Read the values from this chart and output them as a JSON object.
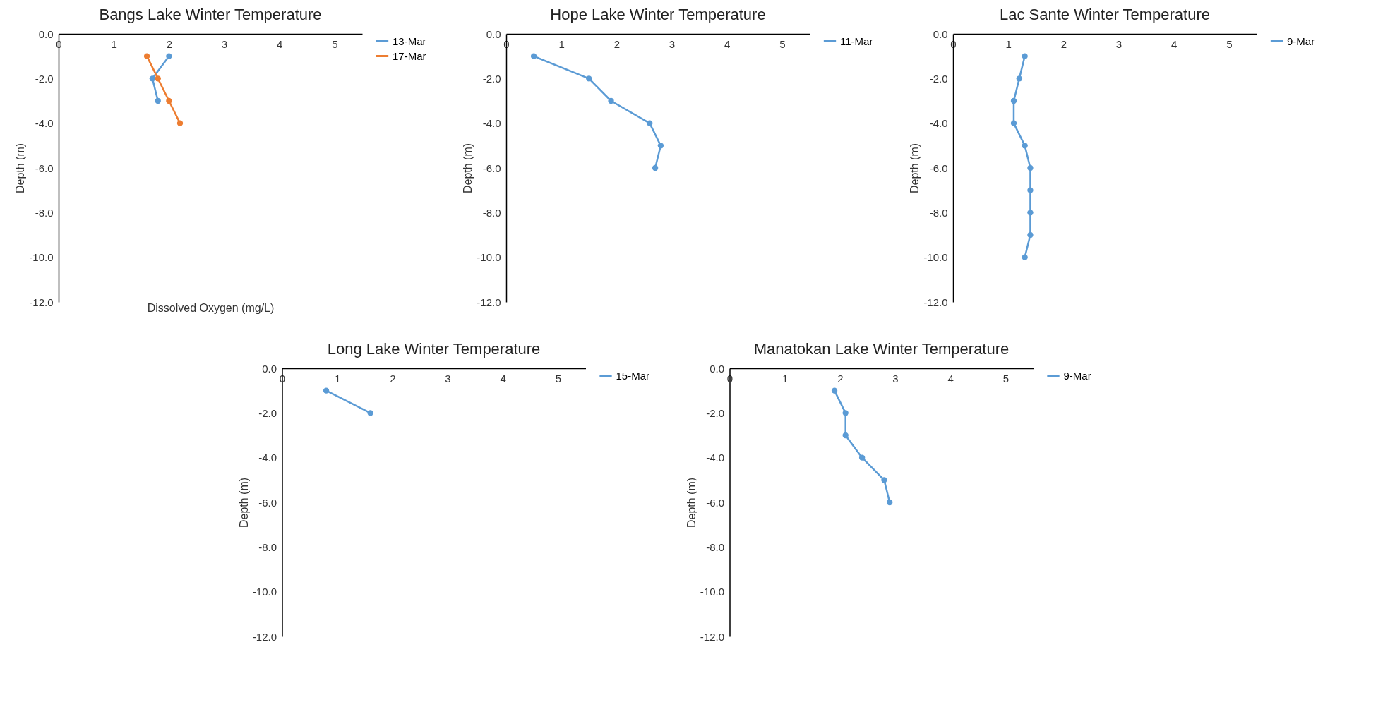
{
  "chart_data": [
    {
      "type": "line",
      "title": "Bangs Lake Winter Temperature",
      "xlabel": "Dissolved Oxygen (mg/L)",
      "ylabel": "Depth (m)",
      "xlim": [
        0,
        5.5
      ],
      "xticks": [
        0,
        1,
        2,
        3,
        4,
        5
      ],
      "ylim": [
        -12,
        0
      ],
      "yticks": [
        {
          "value": -12,
          "label": "-12.0"
        },
        {
          "value": -10,
          "label": "-10.0"
        },
        {
          "value": -8,
          "label": "-8.0"
        },
        {
          "value": -6,
          "label": "-6.0"
        },
        {
          "value": -4,
          "label": "-4.0"
        },
        {
          "value": -2,
          "label": "-2.0"
        },
        {
          "value": 0,
          "label": "0.0"
        }
      ],
      "grid": false,
      "legend": "right",
      "marker": "circle",
      "line_style": "solid",
      "series": [
        {
          "name": "13-Mar",
          "color": "#5b9bd5",
          "x": [
            2.0,
            1.7,
            1.8
          ],
          "values": [
            -1,
            -2,
            -3
          ]
        },
        {
          "name": "17-Mar",
          "color": "#ed7d31",
          "x": [
            1.6,
            1.8,
            2.0,
            2.2
          ],
          "values": [
            -1,
            -2,
            -3,
            -4
          ]
        }
      ]
    },
    {
      "type": "line",
      "title": "Hope Lake Winter Temperature",
      "ylabel": "Depth (m)",
      "xlim": [
        0,
        5.5
      ],
      "xticks": [
        0,
        1,
        2,
        3,
        4,
        5
      ],
      "ylim": [
        -12,
        0
      ],
      "yticks": [
        {
          "value": -12,
          "label": "-12.0"
        },
        {
          "value": -10,
          "label": "-10.0"
        },
        {
          "value": -8,
          "label": "-8.0"
        },
        {
          "value": -6,
          "label": "-6.0"
        },
        {
          "value": -4,
          "label": "-4.0"
        },
        {
          "value": -2,
          "label": "-2.0"
        },
        {
          "value": 0,
          "label": "0.0"
        }
      ],
      "grid": false,
      "legend": "right",
      "marker": "circle",
      "line_style": "solid",
      "series": [
        {
          "name": "11-Mar",
          "color": "#5b9bd5",
          "x": [
            0.5,
            1.5,
            1.9,
            2.6,
            2.8,
            2.7
          ],
          "values": [
            -1,
            -2,
            -3,
            -4,
            -5,
            -6
          ]
        }
      ]
    },
    {
      "type": "line",
      "title": "Lac Sante Winter Temperature",
      "ylabel": "Depth (m)",
      "xlim": [
        0,
        5.5
      ],
      "xticks": [
        0,
        1,
        2,
        3,
        4,
        5
      ],
      "ylim": [
        -12,
        0
      ],
      "yticks": [
        {
          "value": -12,
          "label": "-12.0"
        },
        {
          "value": -10,
          "label": "-10.0"
        },
        {
          "value": -8,
          "label": "-8.0"
        },
        {
          "value": -6,
          "label": "-6.0"
        },
        {
          "value": -4,
          "label": "-4.0"
        },
        {
          "value": -2,
          "label": "-2.0"
        },
        {
          "value": 0,
          "label": "0.0"
        }
      ],
      "grid": false,
      "legend": "right",
      "marker": "circle",
      "line_style": "solid",
      "series": [
        {
          "name": "9-Mar",
          "color": "#5b9bd5",
          "x": [
            1.3,
            1.2,
            1.1,
            1.1,
            1.3,
            1.4,
            1.4,
            1.4,
            1.4,
            1.3
          ],
          "values": [
            -1,
            -2,
            -3,
            -4,
            -5,
            -6,
            -7,
            -8,
            -9,
            -10
          ]
        }
      ]
    },
    {
      "type": "line",
      "title": "Long Lake Winter Temperature",
      "ylabel": "Depth (m)",
      "xlim": [
        0,
        5.5
      ],
      "xticks": [
        0,
        1,
        2,
        3,
        4,
        5
      ],
      "ylim": [
        -12,
        0
      ],
      "yticks": [
        {
          "value": -12,
          "label": "-12.0"
        },
        {
          "value": -10,
          "label": "-10.0"
        },
        {
          "value": -8,
          "label": "-8.0"
        },
        {
          "value": -6,
          "label": "-6.0"
        },
        {
          "value": -4,
          "label": "-4.0"
        },
        {
          "value": -2,
          "label": "-2.0"
        },
        {
          "value": 0,
          "label": "0.0"
        }
      ],
      "grid": false,
      "legend": "right",
      "marker": "circle",
      "line_style": "solid",
      "series": [
        {
          "name": "15-Mar",
          "color": "#5b9bd5",
          "x": [
            0.8,
            1.6
          ],
          "values": [
            -1,
            -2
          ]
        }
      ]
    },
    {
      "type": "line",
      "title": "Manatokan Lake Winter Temperature",
      "ylabel": "Depth (m)",
      "xlim": [
        0,
        5.5
      ],
      "xticks": [
        0,
        1,
        2,
        3,
        4,
        5
      ],
      "ylim": [
        -12,
        0
      ],
      "yticks": [
        {
          "value": -12,
          "label": "-12.0"
        },
        {
          "value": -10,
          "label": "-10.0"
        },
        {
          "value": -8,
          "label": "-8.0"
        },
        {
          "value": -6,
          "label": "-6.0"
        },
        {
          "value": -4,
          "label": "-4.0"
        },
        {
          "value": -2,
          "label": "-2.0"
        },
        {
          "value": 0,
          "label": "0.0"
        }
      ],
      "grid": false,
      "legend": "right",
      "marker": "circle",
      "line_style": "solid",
      "series": [
        {
          "name": "9-Mar",
          "color": "#5b9bd5",
          "x": [
            1.9,
            2.1,
            2.1,
            2.4,
            2.8,
            2.9
          ],
          "values": [
            -1,
            -2,
            -3,
            -4,
            -5,
            -6
          ]
        }
      ]
    }
  ]
}
